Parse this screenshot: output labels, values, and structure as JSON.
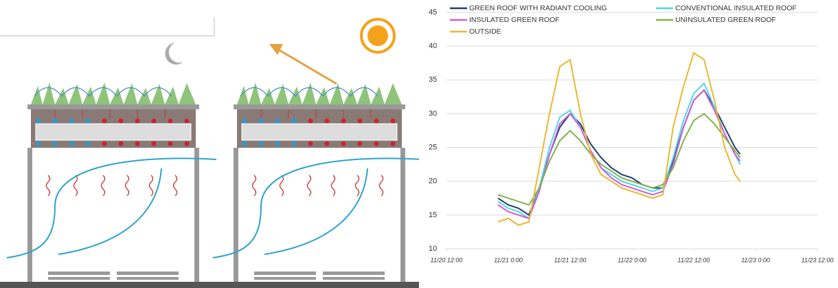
{
  "chart_data": {
    "type": "line",
    "x": [
      22,
      24,
      26,
      28,
      30,
      32,
      34,
      36,
      38,
      40,
      42,
      44,
      46,
      48,
      50,
      52,
      54,
      56,
      58,
      60,
      62,
      64,
      66,
      68,
      69
    ],
    "series": [
      {
        "name": "GREEN ROOF WITH RADIANT COOLING",
        "color": "#1f3f6e",
        "values": [
          17.5,
          16.5,
          16,
          15,
          19,
          24,
          28,
          30,
          28.5,
          25.5,
          23.5,
          22,
          21,
          20.5,
          19.5,
          19,
          19,
          23,
          28,
          32,
          33.5,
          31,
          28,
          25,
          24
        ]
      },
      {
        "name": "CONVENTIONAL INSULATED ROOF",
        "color": "#4fd6e8",
        "values": [
          17,
          16,
          15.5,
          14.5,
          19,
          25,
          29.5,
          30.5,
          28,
          24.5,
          22,
          21,
          20,
          19.5,
          19,
          18.5,
          19,
          23.5,
          29,
          33,
          34.5,
          31,
          27,
          24,
          22.5
        ]
      },
      {
        "name": "INSULATED GREEN ROOF",
        "color": "#d25ad8",
        "values": [
          16.5,
          15.5,
          15,
          14.5,
          18.5,
          24,
          28.5,
          30,
          28,
          24.5,
          22,
          20.5,
          19.5,
          19,
          18.5,
          18,
          18.5,
          22.5,
          28,
          32,
          33.5,
          30.5,
          27,
          24,
          23
        ]
      },
      {
        "name": "UNINSULATED GREEN ROOF",
        "color": "#7fb24a",
        "values": [
          18,
          17.5,
          17,
          16.5,
          19,
          23,
          26,
          27.5,
          26,
          24,
          22.5,
          21.5,
          20.5,
          20,
          19.5,
          19,
          19.5,
          22,
          26,
          29,
          30,
          28.5,
          26.5,
          24.5,
          23.5
        ]
      },
      {
        "name": "OUTSIDE",
        "color": "#e8b830",
        "values": [
          14,
          14.5,
          13.5,
          14,
          22,
          30,
          37,
          38,
          30,
          24,
          21,
          20,
          19,
          18.5,
          18,
          17.5,
          18,
          28,
          34,
          39,
          38,
          32,
          25,
          21,
          20
        ]
      }
    ],
    "xlim": [
      12,
      84
    ],
    "xticks": [
      {
        "value": 12,
        "label": "11/20 12:00"
      },
      {
        "value": 24,
        "label": "11/21 0:00"
      },
      {
        "value": 36,
        "label": "11/21 12:00"
      },
      {
        "value": 48,
        "label": "11/22 0:00"
      },
      {
        "value": 60,
        "label": "11/22 12:00"
      },
      {
        "value": 72,
        "label": "11/23 0:00"
      },
      {
        "value": 84,
        "label": "11/23 12:00"
      }
    ],
    "ylim": [
      10,
      45
    ],
    "yticks": [
      10,
      15,
      20,
      25,
      30,
      35,
      40,
      45
    ],
    "grid": true,
    "legend": "top"
  }
}
